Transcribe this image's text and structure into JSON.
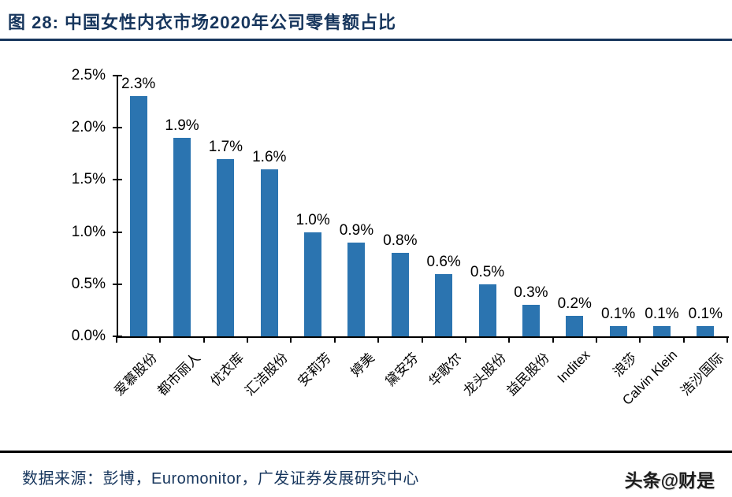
{
  "header": {
    "title": "图 28:  中国女性内衣市场2020年公司零售额占比"
  },
  "chart_data": {
    "type": "bar",
    "title": "中国女性内衣市场2020年公司零售额占比",
    "categories": [
      "爱慕股份",
      "都市丽人",
      "优衣库",
      "汇洁股份",
      "安莉芳",
      "婷美",
      "黛安芬",
      "华歌尔",
      "龙头股份",
      "益民股份",
      "Inditex",
      "浪莎",
      "Calvin Klein",
      "浩沙国际"
    ],
    "values": [
      2.3,
      1.9,
      1.7,
      1.6,
      1.0,
      0.9,
      0.8,
      0.6,
      0.5,
      0.3,
      0.2,
      0.1,
      0.1,
      0.1
    ],
    "data_labels": [
      "2.3%",
      "1.9%",
      "1.7%",
      "1.6%",
      "1.0%",
      "0.9%",
      "0.8%",
      "0.6%",
      "0.5%",
      "0.3%",
      "0.2%",
      "0.1%",
      "0.1%",
      "0.1%"
    ],
    "xlabel": "",
    "ylabel": "",
    "ylim": [
      0,
      2.5
    ],
    "ytick_step": 0.5,
    "ytick_labels": [
      "0.0%",
      "0.5%",
      "1.0%",
      "1.5%",
      "2.0%",
      "2.5%"
    ],
    "grid": "off",
    "legend": "none",
    "bar_color": "#2B74B0",
    "unit": "percent"
  },
  "footer": {
    "source": "数据来源：彭博，Euromonitor，广发证券发展研究中心",
    "watermark": "头条@财是"
  },
  "colors": {
    "title_text": "#17365D",
    "bar": "#2B74B0",
    "axis": "#000000",
    "title_rule": "#17365D",
    "footer_rule": "#000000",
    "source_text": "#17365D",
    "watermark_text": "#1C1C1C"
  }
}
